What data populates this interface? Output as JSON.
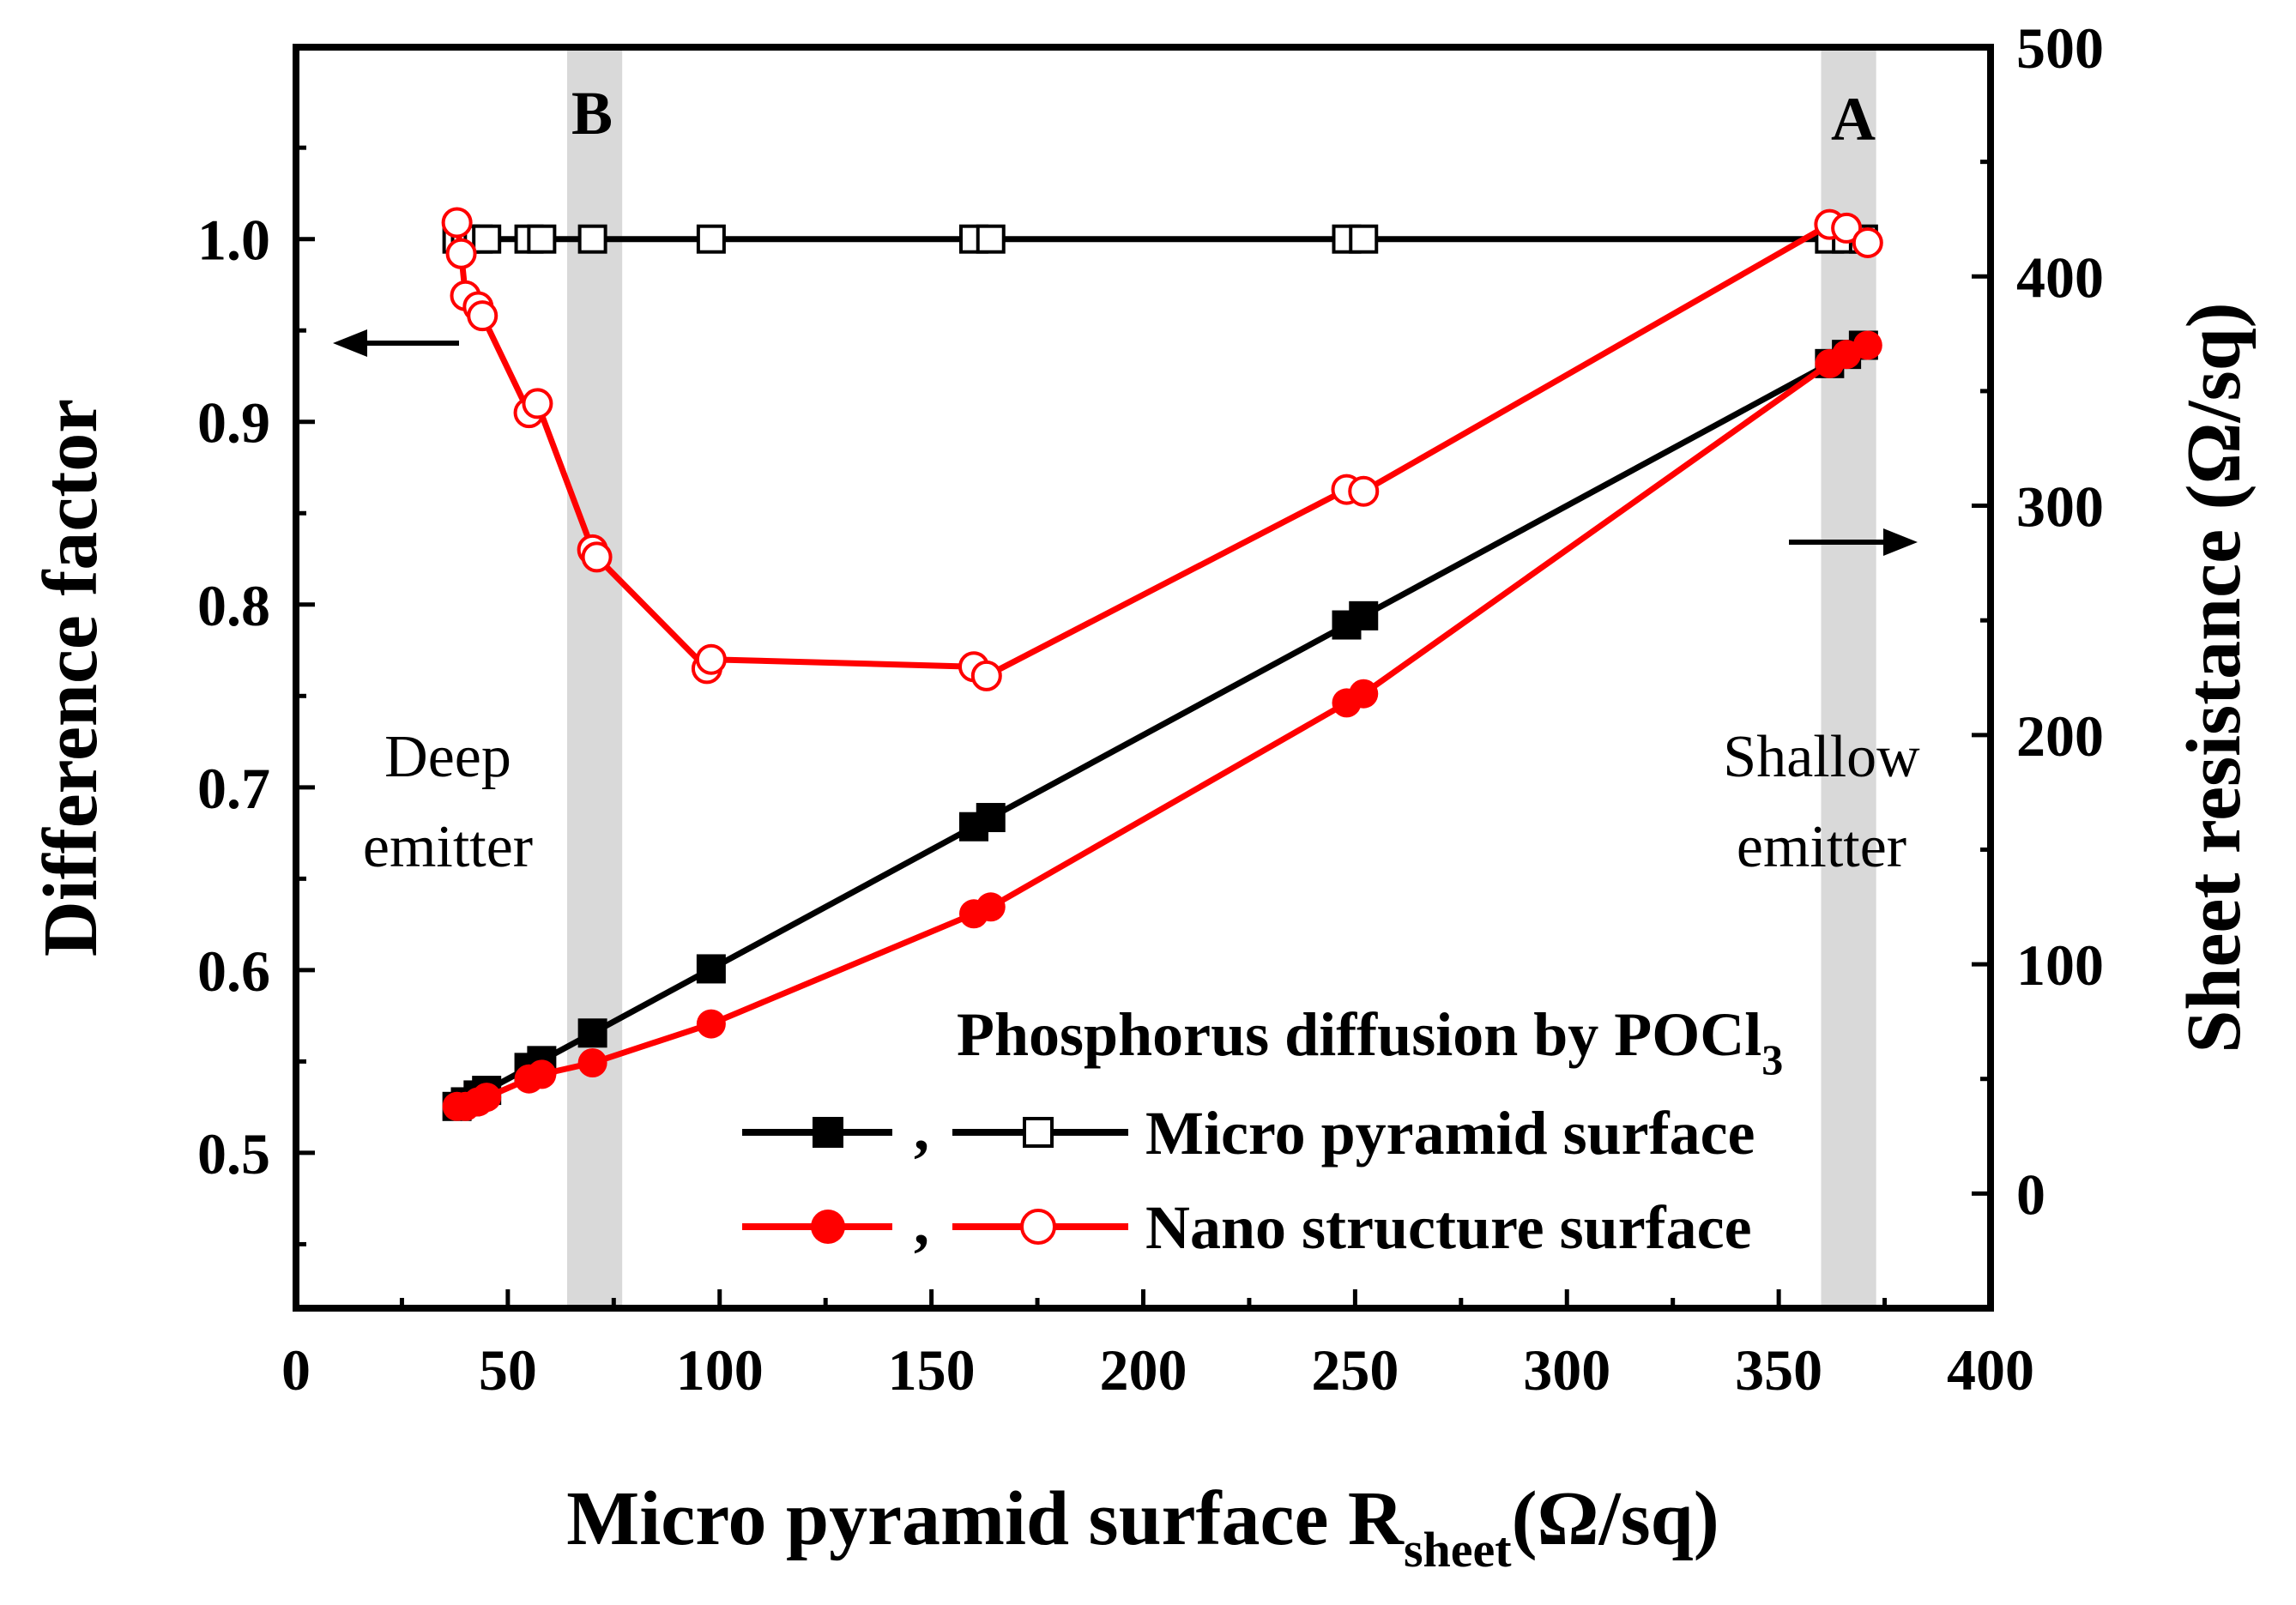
{
  "chart_data": {
    "type": "line",
    "xlabel": "Micro pyramid surface R",
    "xlabel_sub": "sheet",
    "xlabel_unit": "(Ω/sq)",
    "ylabel_left": "Difference factor",
    "ylabel_right": "Sheet resistance (Ω/sq)",
    "xlim": [
      0,
      400
    ],
    "ylim_left": [
      0.415,
      1.105
    ],
    "ylim_right": [
      -50,
      500
    ],
    "x_ticks": [
      0,
      50,
      100,
      150,
      200,
      250,
      300,
      350,
      400
    ],
    "x_tick_labels": [
      "0",
      "50",
      "100",
      "150",
      "200",
      "250",
      "300",
      "350",
      "400"
    ],
    "y_left_ticks": [
      0.5,
      0.6,
      0.7,
      0.8,
      0.9,
      1.0
    ],
    "y_left_tick_labels": [
      "0.5",
      "0.6",
      "0.7",
      "0.8",
      "0.9",
      "1.0"
    ],
    "y_right_ticks": [
      0,
      100,
      200,
      300,
      400,
      500
    ],
    "y_right_tick_labels": [
      "0",
      "100",
      "200",
      "300",
      "400",
      "500"
    ],
    "shaded_regions": [
      {
        "label": "B",
        "x_from": 64,
        "x_to": 77
      },
      {
        "label": "A",
        "x_from": 360,
        "x_to": 373
      }
    ],
    "annotations": {
      "deep_line1": "Deep",
      "deep_line2": "emitter",
      "shallow_line1": "Shallow",
      "shallow_line2": "emitter"
    },
    "legend": {
      "title": "Phosphorus diffusion by POCl",
      "title_sub": "3",
      "separator": ",",
      "entries": [
        "Micro pyramid surface",
        "Nano structure surface"
      ]
    },
    "series": [
      {
        "name": "Micro pyramid surface (difference factor)",
        "axis": "left",
        "color": "#000000",
        "marker": "square",
        "filled": false,
        "x": [
          38,
          40,
          43,
          45,
          55,
          58,
          70,
          98,
          160,
          164,
          248,
          252,
          362,
          366,
          370
        ],
        "y": [
          1.0,
          1.0,
          1.0,
          1.0,
          1.0,
          1.0,
          1.0,
          1.0,
          1.0,
          1.0,
          1.0,
          1.0,
          1.0,
          1.0,
          1.0
        ]
      },
      {
        "name": "Nano structure surface (difference factor)",
        "axis": "left",
        "color": "#ff0000",
        "marker": "circle",
        "filled": false,
        "x": [
          38,
          39,
          40,
          43,
          44,
          55,
          57,
          70,
          71,
          97,
          98,
          160,
          163,
          248,
          252,
          362,
          366,
          371
        ],
        "y": [
          1.009,
          0.992,
          0.969,
          0.963,
          0.958,
          0.905,
          0.91,
          0.83,
          0.826,
          0.765,
          0.77,
          0.766,
          0.761,
          0.863,
          0.862,
          1.008,
          1.006,
          0.998
        ]
      },
      {
        "name": "Micro pyramid surface (sheet resistance)",
        "axis": "right",
        "color": "#000000",
        "marker": "square",
        "filled": true,
        "x": [
          38,
          40,
          43,
          45,
          55,
          58,
          70,
          98,
          160,
          164,
          248,
          252,
          362,
          366,
          370
        ],
        "y": [
          38,
          40,
          43,
          45,
          55,
          58,
          70,
          98,
          160,
          164,
          248,
          252,
          362,
          366,
          370
        ]
      },
      {
        "name": "Nano structure surface (sheet resistance)",
        "axis": "right",
        "color": "#ff0000",
        "marker": "circle",
        "filled": true,
        "x": [
          38,
          40,
          43,
          45,
          55,
          58,
          70,
          98,
          160,
          164,
          248,
          252,
          362,
          366,
          371
        ],
        "y": [
          38,
          38,
          40,
          42,
          50,
          52,
          57,
          74,
          122,
          125,
          214,
          218,
          362,
          366,
          370
        ]
      }
    ]
  }
}
